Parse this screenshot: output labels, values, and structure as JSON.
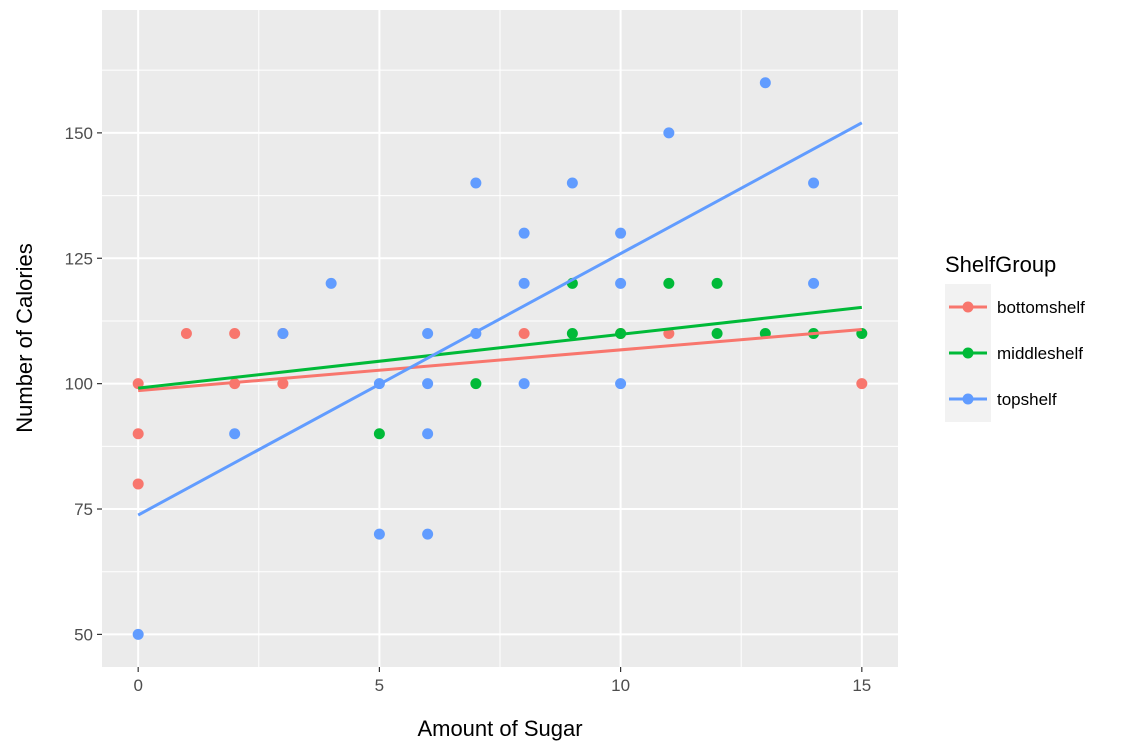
{
  "chart_data": {
    "type": "scatter",
    "xlabel": "Amount of Sugar",
    "ylabel": "Number of Calories",
    "xlim": [
      -0.75,
      15.75
    ],
    "ylim": [
      43.5,
      174.5
    ],
    "x_ticks": [
      0,
      5,
      10,
      15
    ],
    "y_ticks": [
      50,
      75,
      100,
      125,
      150
    ],
    "grid": true,
    "legend_title": "ShelfGroup",
    "legend_position": "right",
    "series": [
      {
        "name": "bottomshelf",
        "color": "#F8766D",
        "points": [
          [
            0,
            100
          ],
          [
            0,
            90
          ],
          [
            0,
            80
          ],
          [
            1,
            110
          ],
          [
            2,
            110
          ],
          [
            2,
            100
          ],
          [
            3,
            110
          ],
          [
            3,
            100
          ],
          [
            8,
            110
          ],
          [
            10,
            110
          ],
          [
            11,
            110
          ],
          [
            15,
            100
          ]
        ],
        "fit": [
          [
            0,
            98.6
          ],
          [
            15,
            110.8
          ]
        ]
      },
      {
        "name": "middleshelf",
        "color": "#00BA38",
        "points": [
          [
            5,
            90
          ],
          [
            7,
            100
          ],
          [
            9,
            120
          ],
          [
            9,
            110
          ],
          [
            10,
            110
          ],
          [
            11,
            120
          ],
          [
            12,
            120
          ],
          [
            12,
            110
          ],
          [
            13,
            110
          ],
          [
            14,
            110
          ],
          [
            15,
            110
          ]
        ],
        "fit": [
          [
            0,
            99.1
          ],
          [
            15,
            115.2
          ]
        ]
      },
      {
        "name": "topshelf",
        "color": "#619CFF",
        "points": [
          [
            0,
            50
          ],
          [
            2,
            90
          ],
          [
            3,
            110
          ],
          [
            4,
            120
          ],
          [
            5,
            100
          ],
          [
            5,
            70
          ],
          [
            6,
            110
          ],
          [
            6,
            100
          ],
          [
            6,
            90
          ],
          [
            6,
            70
          ],
          [
            7,
            140
          ],
          [
            7,
            110
          ],
          [
            8,
            130
          ],
          [
            8,
            120
          ],
          [
            8,
            100
          ],
          [
            9,
            140
          ],
          [
            10,
            130
          ],
          [
            10,
            120
          ],
          [
            10,
            100
          ],
          [
            11,
            150
          ],
          [
            13,
            160
          ],
          [
            14,
            140
          ],
          [
            14,
            120
          ]
        ],
        "fit": [
          [
            0,
            73.8
          ],
          [
            15,
            152
          ]
        ]
      }
    ]
  }
}
